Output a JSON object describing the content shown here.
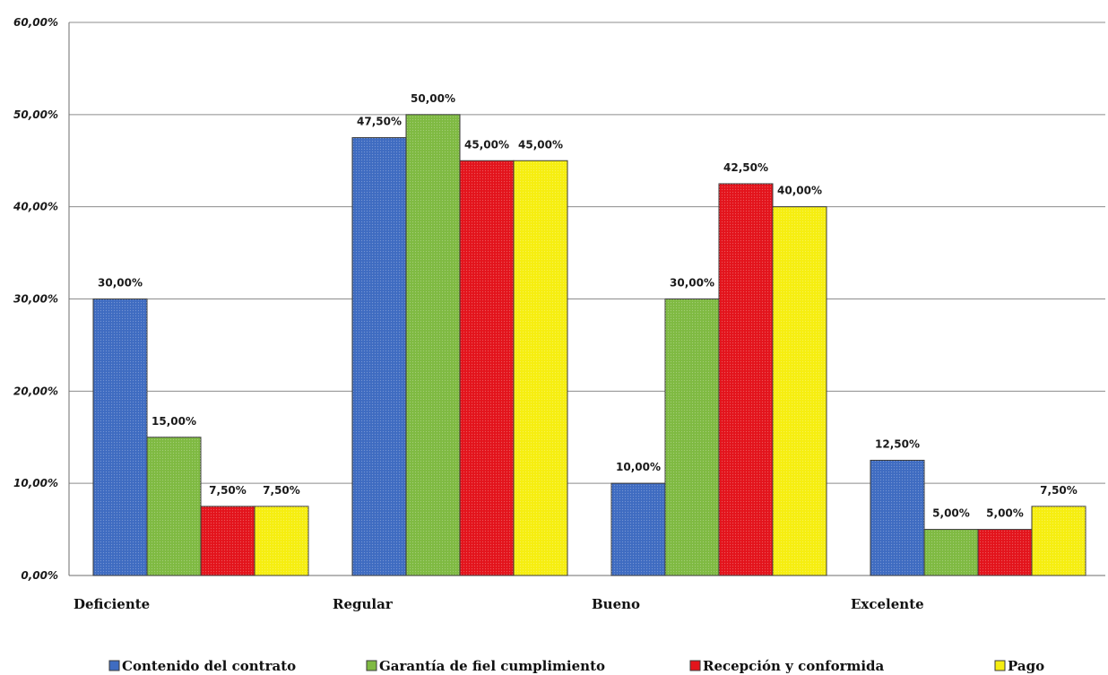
{
  "chart_data": {
    "type": "bar",
    "categories": [
      "Deficiente",
      "Regular",
      "Bueno",
      "Excelente"
    ],
    "series": [
      {
        "name": "Contenido del contrato",
        "values": [
          30.0,
          47.5,
          10.0,
          12.5
        ],
        "color": "#3f6cc1",
        "labels": [
          "30,00%",
          "47,50%",
          "10,00%",
          "12,50%"
        ]
      },
      {
        "name": "Garantía de fiel cumplimiento",
        "values": [
          15.0,
          50.0,
          30.0,
          5.0
        ],
        "color": "#7fba42",
        "labels": [
          "15,00%",
          "50,00%",
          "30,00%",
          "5,00%"
        ]
      },
      {
        "name": "Recepción y conformida",
        "values": [
          7.5,
          45.0,
          42.5,
          5.0
        ],
        "color": "#e3141c",
        "labels": [
          "7,50%",
          "45,00%",
          "42,50%",
          "5,00%"
        ]
      },
      {
        "name": "Pago",
        "values": [
          7.5,
          45.0,
          40.0,
          7.5
        ],
        "color": "#f6ee10",
        "labels": [
          "7,50%",
          "45,00%",
          "40,00%",
          "7,50%"
        ]
      }
    ],
    "yticks": [
      0,
      10,
      20,
      30,
      40,
      50,
      60
    ],
    "ytick_labels": [
      "0,00%",
      "10,00%",
      "20,00%",
      "30,00%",
      "40,00%",
      "50,00%",
      "60,00%"
    ],
    "ylim": [
      0,
      60
    ],
    "grid": true,
    "legend": "bottom",
    "title": "",
    "xlabel": "",
    "ylabel": ""
  }
}
